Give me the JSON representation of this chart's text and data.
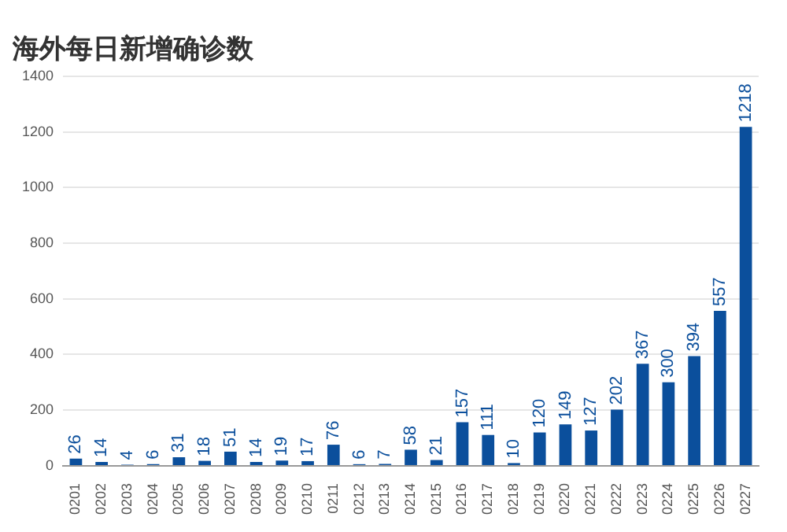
{
  "chart_data": {
    "type": "bar",
    "title": "海外每日新增确诊数",
    "categories": [
      "0201",
      "0202",
      "0203",
      "0204",
      "0205",
      "0206",
      "0207",
      "0208",
      "0209",
      "0210",
      "0211",
      "0212",
      "0213",
      "0214",
      "0215",
      "0216",
      "0217",
      "0218",
      "0219",
      "0220",
      "0221",
      "0222",
      "0223",
      "0224",
      "0225",
      "0226",
      "0227"
    ],
    "values": [
      26,
      14,
      4,
      6,
      31,
      18,
      51,
      14,
      19,
      17,
      76,
      6,
      7,
      58,
      21,
      157,
      111,
      10,
      120,
      149,
      127,
      202,
      367,
      300,
      394,
      557,
      1218
    ],
    "color": "#0b4f9c",
    "ylim": [
      0,
      1400
    ],
    "yticks": [
      0,
      200,
      400,
      600,
      800,
      1000,
      1200,
      1400
    ],
    "grid": "y",
    "data_labels": true,
    "legend": false
  }
}
